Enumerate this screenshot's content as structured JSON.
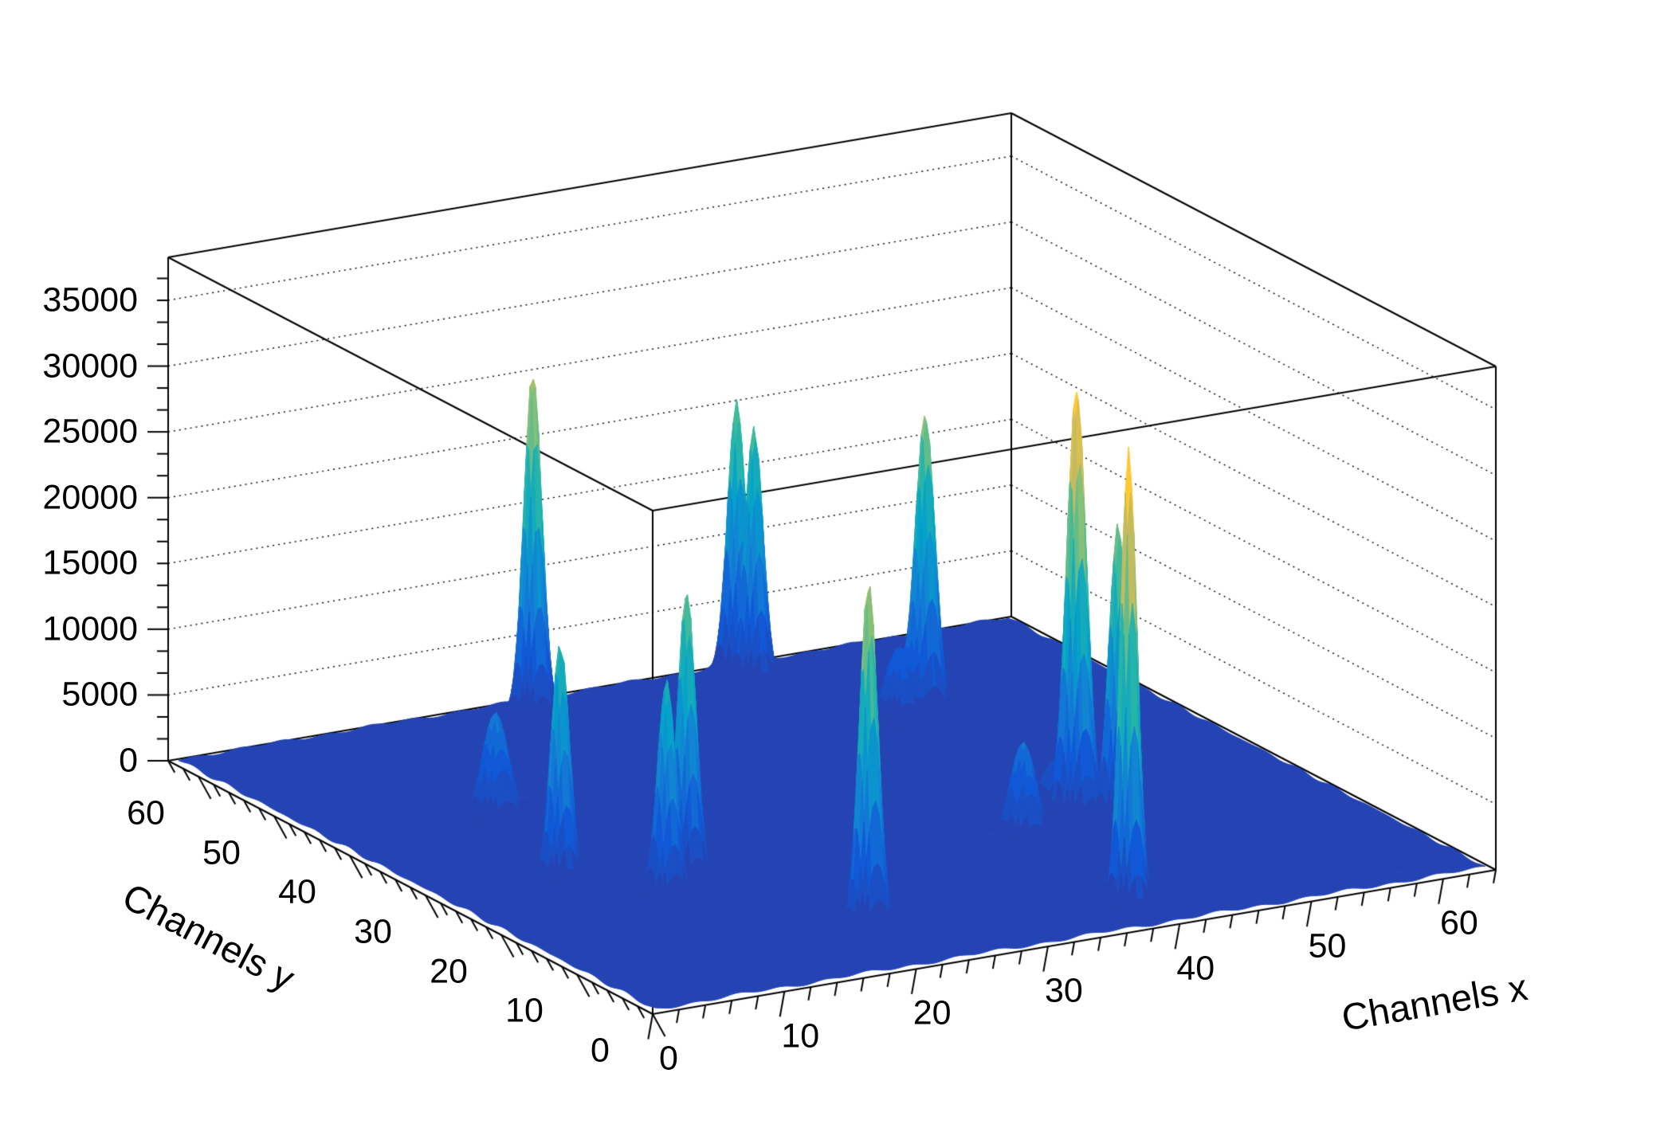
{
  "figure": {
    "description": "3D surface plot (ROOT SURF2 style) of a 64x64 two-dimensional gamma spectrum with narrow Gaussian peaks",
    "background_color": "#ffffff",
    "frame_color": "#000000"
  },
  "chart_data": {
    "type": "surface3d",
    "title": "",
    "xlabel": "Channels x",
    "ylabel": "Channels y",
    "zlabel": "",
    "x_range": [
      0,
      64
    ],
    "y_range": [
      0,
      64
    ],
    "z_range": [
      0,
      38270
    ],
    "x_ticks": [
      0,
      10,
      20,
      30,
      40,
      50,
      60
    ],
    "y_ticks": [
      0,
      10,
      20,
      30,
      40,
      50,
      60
    ],
    "z_ticks": [
      0,
      5000,
      10000,
      15000,
      20000,
      25000,
      30000,
      35000
    ],
    "x_minor_step": 2,
    "y_minor_step": 2,
    "z_minor_per_major": 3,
    "grid": "dotted z-level lines on back walls",
    "legend": "none",
    "palette_max": 36000,
    "palette_levels": 20,
    "palette_stops": [
      [
        0.0,
        "#2a3fab"
      ],
      [
        0.125,
        "#1159d6"
      ],
      [
        0.25,
        "#1480d6"
      ],
      [
        0.375,
        "#05a3c9"
      ],
      [
        0.5,
        "#2eb8a4"
      ],
      [
        0.625,
        "#87c078"
      ],
      [
        0.75,
        "#d1bb59"
      ],
      [
        0.875,
        "#ffc933"
      ],
      [
        1.0,
        "#fafa0d"
      ]
    ],
    "background_noise_level": 250,
    "peaks": [
      {
        "x": 25.9,
        "y": 60.9,
        "amplitude": 26000,
        "sigma": 0.6
      },
      {
        "x": 42.0,
        "y": 62.0,
        "amplitude": 20800,
        "sigma": 0.6
      },
      {
        "x": 42.0,
        "y": 59.7,
        "amplitude": 19300,
        "sigma": 0.6
      },
      {
        "x": 9.3,
        "y": 28.4,
        "amplitude": 18000,
        "sigma": 0.6
      },
      {
        "x": 12.2,
        "y": 42.0,
        "amplitude": 8100,
        "sigma": 0.85
      },
      {
        "x": 17.0,
        "y": 25.1,
        "amplitude": 21500,
        "sigma": 0.6
      },
      {
        "x": 13.7,
        "y": 22.0,
        "amplitude": 16300,
        "sigma": 0.6
      },
      {
        "x": 22.2,
        "y": 10.1,
        "amplitude": 26000,
        "sigma": 0.6
      },
      {
        "x": 48.5,
        "y": 48.4,
        "amplitude": 22500,
        "sigma": 0.65
      },
      {
        "x": 46.3,
        "y": 48.1,
        "amplitude": 5300,
        "sigma": 0.85
      },
      {
        "x": 46.2,
        "y": 24.4,
        "amplitude": 32000,
        "sigma": 0.65
      },
      {
        "x": 39.0,
        "y": 5.0,
        "amplitude": 34800,
        "sigma": 0.55
      },
      {
        "x": 47.8,
        "y": 21.7,
        "amplitude": 22600,
        "sigma": 0.6
      },
      {
        "x": 40.2,
        "y": 21.0,
        "amplitude": 7300,
        "sigma": 0.85
      },
      {
        "x": 45.8,
        "y": 26.5,
        "amplitude": 3300,
        "sigma": 0.85
      }
    ]
  }
}
